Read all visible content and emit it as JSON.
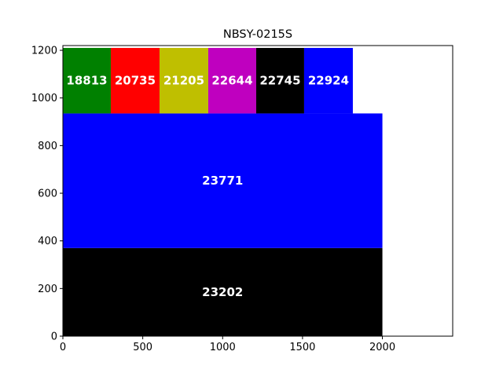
{
  "chart_data": {
    "type": "rectangles",
    "title": "NBSY-0215S",
    "xlabel": "",
    "ylabel": "",
    "xlim": [
      0,
      2440
    ],
    "ylim": [
      0,
      1220
    ],
    "x_ticks": [
      0,
      500,
      1000,
      1500,
      2000
    ],
    "y_ticks": [
      0,
      200,
      400,
      600,
      800,
      1000,
      1200
    ],
    "grid": false,
    "rectangles": [
      {
        "label": "23202",
        "x0": 0,
        "x1": 2000,
        "y0": 0,
        "y1": 370,
        "color": "#000000"
      },
      {
        "label": "23771",
        "x0": 0,
        "x1": 2000,
        "y0": 370,
        "y1": 935,
        "color": "#0000ff"
      },
      {
        "label": "18813",
        "x0": 0,
        "x1": 300,
        "y0": 935,
        "y1": 1210,
        "color": "#008000"
      },
      {
        "label": "20735",
        "x0": 300,
        "x1": 605,
        "y0": 935,
        "y1": 1210,
        "color": "#ff0000"
      },
      {
        "label": "21205",
        "x0": 605,
        "x1": 910,
        "y0": 935,
        "y1": 1210,
        "color": "#bfbf00"
      },
      {
        "label": "22644",
        "x0": 910,
        "x1": 1210,
        "y0": 935,
        "y1": 1210,
        "color": "#bf00bf"
      },
      {
        "label": "22745",
        "x0": 1210,
        "x1": 1510,
        "y0": 935,
        "y1": 1210,
        "color": "#000000"
      },
      {
        "label": "22924",
        "x0": 1510,
        "x1": 1815,
        "y0": 935,
        "y1": 1210,
        "color": "#0000ff"
      }
    ]
  }
}
